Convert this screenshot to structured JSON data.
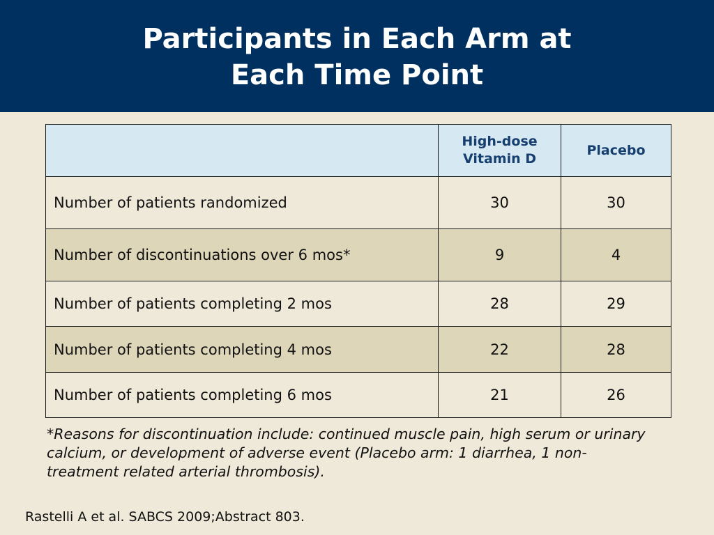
{
  "title": {
    "line1": "Participants in Each Arm at",
    "line2": "Each Time Point"
  },
  "table": {
    "headers": [
      "",
      "High-dose\nVitamin D",
      "Placebo"
    ],
    "header_col1_line1": "High-dose",
    "header_col1_line2": "Vitamin D",
    "header_col2": "Placebo",
    "rows": [
      {
        "label": "Number of patients randomized",
        "vitd": "30",
        "placebo": "30"
      },
      {
        "label": "Number of discontinuations over 6 mos*",
        "vitd": "9",
        "placebo": "4"
      },
      {
        "label": "Number of patients completing 2 mos",
        "vitd": "28",
        "placebo": "29"
      },
      {
        "label": "Number of patients completing 4 mos",
        "vitd": "22",
        "placebo": "28"
      },
      {
        "label": "Number of patients completing 6 mos",
        "vitd": "21",
        "placebo": "26"
      }
    ]
  },
  "footnote": "*Reasons for discontinuation include: continued muscle pain, high serum or urinary calcium, or development of adverse event (Placebo arm: 1 diarrhea, 1 non-treatment related arterial thrombosis).",
  "citation": "Rastelli A et al. SABCS 2009;Abstract 803.",
  "colors": {
    "header_bg": "#003060",
    "table_header_bg": "#d6e9f2",
    "row_alt_bg": "#ded6b9",
    "page_bg": "#efe9d9"
  }
}
